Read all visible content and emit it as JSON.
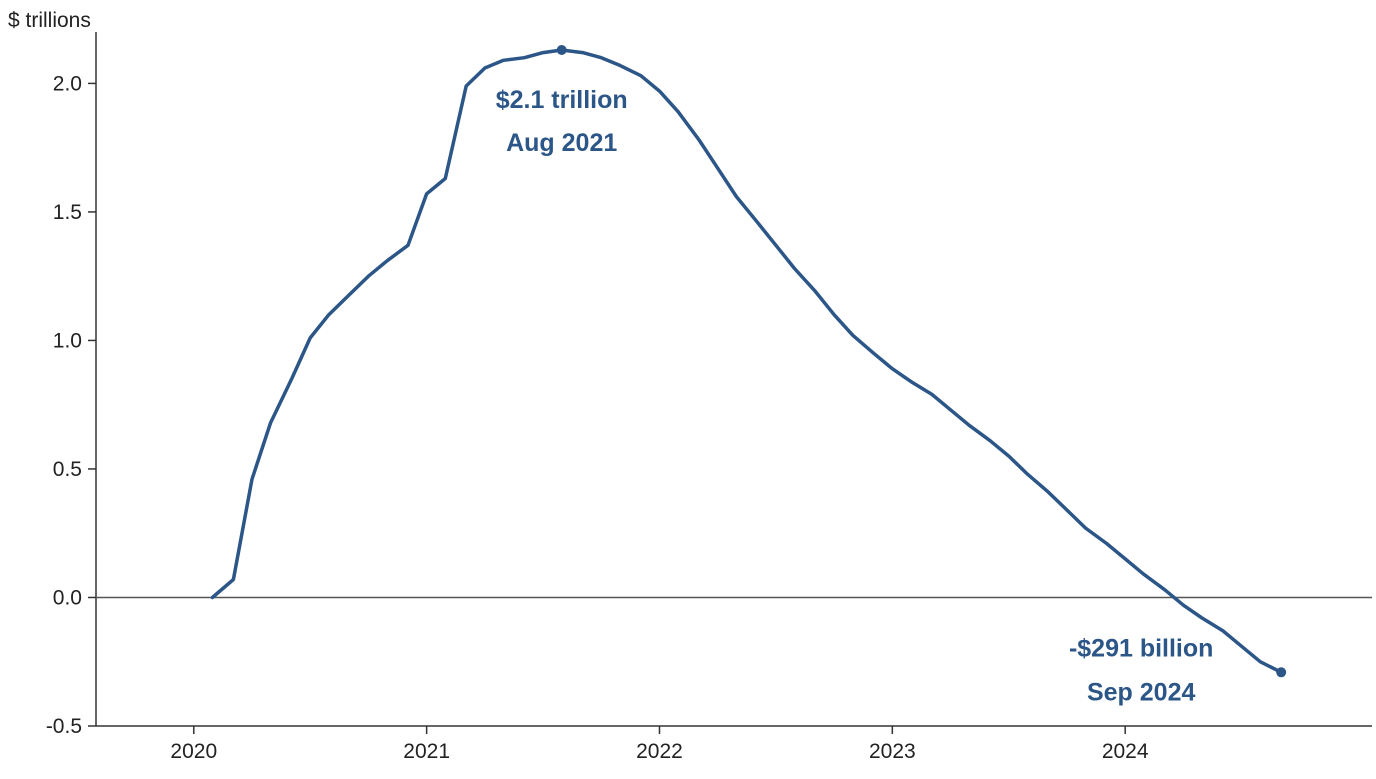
{
  "chart_data": {
    "type": "line",
    "title": "",
    "unit_label": "$ trillions",
    "xlabel": "",
    "ylabel": "",
    "xlim": [
      2019.58,
      2025.06
    ],
    "ylim": [
      -0.5,
      2.2
    ],
    "y_ticks": [
      {
        "value": 2.0,
        "label": "2.0"
      },
      {
        "value": 1.5,
        "label": "1.5"
      },
      {
        "value": 1.0,
        "label": "1.0"
      },
      {
        "value": 0.5,
        "label": "0.5"
      },
      {
        "value": 0.0,
        "label": "0.0"
      },
      {
        "value": -0.5,
        "label": "-0.5"
      }
    ],
    "x_ticks": [
      {
        "value": 2020,
        "label": "2020"
      },
      {
        "value": 2021,
        "label": "2021"
      },
      {
        "value": 2022,
        "label": "2022"
      },
      {
        "value": 2023,
        "label": "2023"
      },
      {
        "value": 2024,
        "label": "2024"
      }
    ],
    "grid": false,
    "zero_line": true,
    "line_color": "#2b5687",
    "annotation_color": "#2b5687",
    "series": [
      {
        "x": [
          2020.08,
          2020.17,
          2020.25,
          2020.33,
          2020.42,
          2020.5,
          2020.58,
          2020.67,
          2020.75,
          2020.83,
          2020.92,
          2021.0,
          2021.08,
          2021.17,
          2021.25,
          2021.33,
          2021.42,
          2021.5,
          2021.58,
          2021.67,
          2021.75,
          2021.83,
          2021.92,
          2022.0,
          2022.08,
          2022.17,
          2022.25,
          2022.33,
          2022.42,
          2022.5,
          2022.58,
          2022.67,
          2022.75,
          2022.83,
          2022.92,
          2023.0,
          2023.08,
          2023.17,
          2023.25,
          2023.33,
          2023.42,
          2023.5,
          2023.58,
          2023.67,
          2023.75,
          2023.83,
          2023.92,
          2024.0,
          2024.08,
          2024.17,
          2024.25,
          2024.33,
          2024.42,
          2024.5,
          2024.58,
          2024.67
        ],
        "values": [
          0.0,
          0.07,
          0.46,
          0.68,
          0.85,
          1.01,
          1.1,
          1.18,
          1.25,
          1.31,
          1.37,
          1.57,
          1.63,
          1.99,
          2.06,
          2.09,
          2.1,
          2.12,
          2.13,
          2.12,
          2.1,
          2.07,
          2.03,
          1.97,
          1.89,
          1.78,
          1.67,
          1.56,
          1.46,
          1.37,
          1.28,
          1.19,
          1.1,
          1.02,
          0.95,
          0.89,
          0.84,
          0.79,
          0.73,
          0.67,
          0.61,
          0.55,
          0.48,
          0.41,
          0.34,
          0.27,
          0.21,
          0.15,
          0.09,
          0.03,
          -0.03,
          -0.08,
          -0.13,
          -0.19,
          -0.25,
          -0.291
        ]
      }
    ],
    "annotations": [
      {
        "x": 2021.58,
        "y": 2.13,
        "line1": "$2.1 trillion",
        "line2": "Aug 2021"
      },
      {
        "x": 2024.67,
        "y": -0.291,
        "line1": "-$291 billion",
        "line2": "Sep 2024"
      }
    ]
  }
}
